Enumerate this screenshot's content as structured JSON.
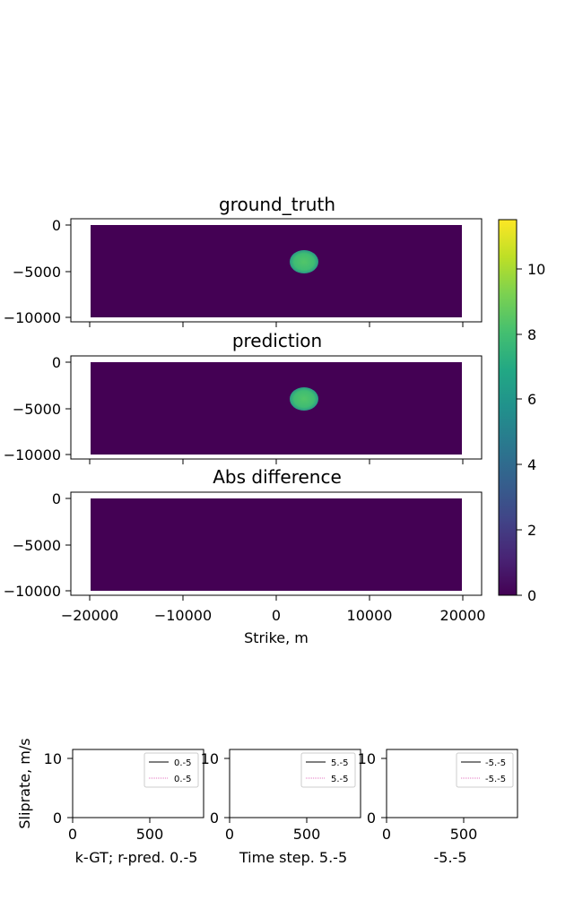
{
  "colors": {
    "background": "#ffffff",
    "field": "#440154",
    "anomaly_outer": "#2a9a86",
    "anomaly_inner": "#52c569",
    "gt_line": "#000000",
    "pred_line": "#e377c2"
  },
  "colorbar": {
    "colormap": "viridis",
    "vmin": 0,
    "vmax": 11.5,
    "ticks": [
      0,
      2,
      4,
      6,
      8,
      10
    ],
    "tick_labels": [
      "0",
      "2",
      "4",
      "6",
      "8",
      "10"
    ]
  },
  "chart_data": [
    {
      "type": "heatmap",
      "title": "ground_truth",
      "xlim": [
        -22000,
        22000
      ],
      "ylim": [
        -10500,
        500
      ],
      "x_ticks": [
        -20000,
        -10000,
        0,
        10000,
        20000
      ],
      "y_ticks": [
        0,
        -5000,
        -10000
      ],
      "y_tick_labels": [
        "0",
        "−5000",
        "−10000"
      ],
      "field_extent_x": [
        -20000,
        20000
      ],
      "field_extent_y": [
        -10000,
        0
      ],
      "background_value": 0,
      "anomaly": {
        "center_x": 3000,
        "center_y": -4000,
        "radius_x": 1600,
        "radius_y": 1250,
        "peak_value": 7
      }
    },
    {
      "type": "heatmap",
      "title": "prediction",
      "xlim": [
        -22000,
        22000
      ],
      "ylim": [
        -10500,
        500
      ],
      "x_ticks": [
        -20000,
        -10000,
        0,
        10000,
        20000
      ],
      "y_ticks": [
        0,
        -5000,
        -10000
      ],
      "y_tick_labels": [
        "0",
        "−5000",
        "−10000"
      ],
      "field_extent_x": [
        -20000,
        20000
      ],
      "field_extent_y": [
        -10000,
        0
      ],
      "background_value": 0,
      "anomaly": {
        "center_x": 3000,
        "center_y": -4000,
        "radius_x": 1600,
        "radius_y": 1250,
        "peak_value": 7
      }
    },
    {
      "type": "heatmap",
      "title": "Abs difference",
      "xlim": [
        -22000,
        22000
      ],
      "ylim": [
        -10500,
        500
      ],
      "x_ticks": [
        -20000,
        -10000,
        0,
        10000,
        20000
      ],
      "x_tick_labels": [
        "−20000",
        "−10000",
        "0",
        "10000",
        "20000"
      ],
      "y_ticks": [
        0,
        -5000,
        -10000
      ],
      "y_tick_labels": [
        "0",
        "−5000",
        "−10000"
      ],
      "xlabel": "Strike, m",
      "field_extent_x": [
        -20000,
        20000
      ],
      "field_extent_y": [
        -10000,
        0
      ],
      "background_value": 0
    },
    {
      "type": "line",
      "xlim": [
        0,
        850
      ],
      "ylim": [
        0,
        11.5
      ],
      "x_ticks": [
        0,
        500
      ],
      "y_ticks": [
        0,
        10
      ],
      "ylabel": "Sliprate, m/s",
      "xlabel": "k-GT; r-pred. 0.-5",
      "series": [
        {
          "name": "0.-5",
          "color": "#000000",
          "x": [],
          "y": []
        },
        {
          "name": "0.-5",
          "color": "#e377c2",
          "x": [],
          "y": []
        }
      ]
    },
    {
      "type": "line",
      "xlim": [
        0,
        850
      ],
      "ylim": [
        0,
        11.5
      ],
      "x_ticks": [
        0,
        500
      ],
      "y_ticks": [
        0,
        10
      ],
      "xlabel": "Time step. 5.-5",
      "series": [
        {
          "name": "5.-5",
          "color": "#000000",
          "x": [],
          "y": []
        },
        {
          "name": "5.-5",
          "color": "#e377c2",
          "x": [],
          "y": []
        }
      ]
    },
    {
      "type": "line",
      "xlim": [
        0,
        850
      ],
      "ylim": [
        0,
        11.5
      ],
      "x_ticks": [
        0,
        500
      ],
      "y_ticks": [
        0,
        10
      ],
      "xlabel": "-5.-5",
      "series": [
        {
          "name": "-5.-5",
          "color": "#000000",
          "x": [],
          "y": []
        },
        {
          "name": "-5.-5",
          "color": "#e377c2",
          "x": [],
          "y": []
        }
      ]
    }
  ]
}
